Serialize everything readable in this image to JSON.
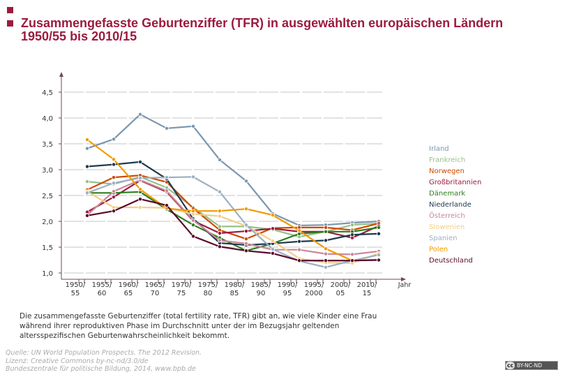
{
  "title": "Zusammengefasste Geburtenziffer (TFR) in ausgewählten europäischen Ländern 1950/55 bis 2010/15",
  "note": "Die zusammengefasste Geburtenziffer (total fertility rate, TFR) gibt an, wie viele Kinder eine Frau während ihrer reproduktiven Phase im Durchschnitt unter der im Bezugsjahr geltenden altersspezifischen Geburtenwahrscheinlichkeit bekommt.",
  "source": {
    "line1": "Quelle: UN World Population Prospects. The 2012 Revision.",
    "line2": "Lizenz: Creative Commons by-nc-nd/3.0/de",
    "line3": "Bundeszentrale für politische Bildung, 2014, www.bpb.de"
  },
  "license_badge": {
    "cc": "cc",
    "text": "BY-NC-ND"
  },
  "colors": {
    "title": "#9b1b3e",
    "axis": "#6b4a5a",
    "grid": "#d0d0d0"
  },
  "chart_data": {
    "type": "line",
    "title": "Zusammengefasste Geburtenziffer (TFR) in ausgewählten europäischen Ländern 1950/55 bis 2010/15",
    "xlabel": "Jahr",
    "ylabel": "",
    "ylim": [
      1.0,
      4.5
    ],
    "yticks": [
      "1,0",
      "1,5",
      "2,0",
      "2,5",
      "3,0",
      "3,5",
      "4,0",
      "4,5"
    ],
    "ytick_values": [
      1.0,
      1.5,
      2.0,
      2.5,
      3.0,
      3.5,
      4.0,
      4.5
    ],
    "grid": true,
    "legend_position": "right",
    "categories": [
      [
        "1950/",
        "55"
      ],
      [
        "1955/",
        "60"
      ],
      [
        "1960/",
        "65"
      ],
      [
        "1965/",
        "70"
      ],
      [
        "1970/",
        "75"
      ],
      [
        "1975/",
        "80"
      ],
      [
        "1980/",
        "85"
      ],
      [
        "1985/",
        "90"
      ],
      [
        "1990/",
        "95"
      ],
      [
        "1995/",
        "2000"
      ],
      [
        "2000/",
        "05"
      ],
      [
        "2010/",
        "15"
      ]
    ],
    "series": [
      {
        "name": "Irland",
        "color": "#7b96ad",
        "values": [
          3.41,
          3.59,
          4.07,
          3.8,
          3.84,
          3.19,
          2.78,
          2.15,
          1.92,
          1.93,
          1.97,
          2.0
        ]
      },
      {
        "name": "Frankreich",
        "color": "#95c08b",
        "values": [
          2.77,
          2.72,
          2.86,
          2.65,
          2.27,
          1.9,
          1.9,
          1.84,
          1.7,
          1.8,
          1.93,
          1.96
        ]
      },
      {
        "name": "Norwegen",
        "color": "#d04a02",
        "values": [
          2.61,
          2.85,
          2.89,
          2.76,
          2.25,
          1.83,
          1.66,
          1.87,
          1.88,
          1.88,
          1.83,
          1.96
        ]
      },
      {
        "name": "Großbritannien",
        "color": "#9b1b3e",
        "values": [
          2.18,
          2.47,
          2.79,
          2.57,
          2.01,
          1.77,
          1.81,
          1.86,
          1.8,
          1.8,
          1.68,
          1.91
        ]
      },
      {
        "name": "Dänemark",
        "color": "#2e7d1e",
        "values": [
          2.55,
          2.55,
          2.57,
          2.23,
          1.93,
          1.68,
          1.43,
          1.57,
          1.76,
          1.8,
          1.8,
          1.88
        ]
      },
      {
        "name": "Niederlande",
        "color": "#1e3a4e",
        "values": [
          3.06,
          3.1,
          3.15,
          2.82,
          2.05,
          1.58,
          1.54,
          1.57,
          1.61,
          1.63,
          1.74,
          1.76
        ]
      },
      {
        "name": "Österreich",
        "color": "#c9879a",
        "values": [
          2.12,
          2.58,
          2.8,
          2.59,
          2.02,
          1.63,
          1.57,
          1.45,
          1.45,
          1.37,
          1.36,
          1.42
        ]
      },
      {
        "name": "Slowenien",
        "color": "#f4cd85",
        "values": [
          2.58,
          2.27,
          2.27,
          2.26,
          2.14,
          2.1,
          1.91,
          1.62,
          1.28,
          1.2,
          1.19,
          1.38
        ]
      },
      {
        "name": "Spanien",
        "color": "#9bb0c4",
        "values": [
          2.55,
          2.74,
          2.84,
          2.85,
          2.86,
          2.57,
          1.93,
          1.46,
          1.23,
          1.11,
          1.24,
          1.35
        ]
      },
      {
        "name": "Polen",
        "color": "#f09a00",
        "values": [
          3.58,
          3.2,
          2.62,
          2.25,
          2.2,
          2.2,
          2.24,
          2.12,
          1.82,
          1.47,
          1.24,
          1.26
        ]
      },
      {
        "name": "Deutschland",
        "color": "#5a0a2a",
        "values": [
          2.11,
          2.2,
          2.43,
          2.31,
          1.71,
          1.51,
          1.43,
          1.38,
          1.24,
          1.24,
          1.24,
          1.25
        ]
      }
    ]
  }
}
